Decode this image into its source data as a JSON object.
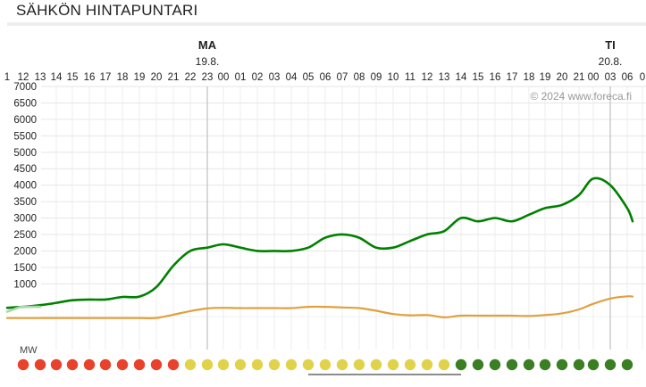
{
  "header": {
    "title": "SÄHKÖN HINTAPUNTARI"
  },
  "chart_data": {
    "type": "line",
    "copyright": "© 2024 www.foreca.fi",
    "unit_label": "MW",
    "day_labels": [
      {
        "day": "MA",
        "date": "19.8.",
        "hour_index": 12
      },
      {
        "day": "TI",
        "date": "20.8.",
        "hour_index": 36
      }
    ],
    "hour_labels": [
      "1",
      "12",
      "13",
      "14",
      "15",
      "16",
      "17",
      "18",
      "19",
      "20",
      "21",
      "22",
      "23",
      "00",
      "01",
      "02",
      "03",
      "04",
      "05",
      "06",
      "07",
      "08",
      "09",
      "10",
      "11",
      "12",
      "13",
      "14",
      "15",
      "16",
      "17",
      "18",
      "19",
      "20",
      "21",
      "00",
      "03",
      "06",
      "0"
    ],
    "hour_tick_x": [
      8,
      26,
      45,
      63,
      81,
      100,
      118,
      137,
      156,
      175,
      194,
      213,
      232,
      250,
      269,
      288,
      307,
      326,
      345,
      364,
      383,
      402,
      421,
      440,
      459,
      478,
      497,
      516,
      535,
      554,
      573,
      592,
      610,
      629,
      648,
      664,
      683,
      702,
      719
    ],
    "ylim": [
      0,
      7000
    ],
    "yticks": [
      1000,
      1500,
      2000,
      2500,
      3000,
      3500,
      4000,
      4500,
      5000,
      5500,
      6000,
      6500,
      7000
    ],
    "x_range": [
      8,
      719
    ],
    "grid": true,
    "series": [
      {
        "color": "#008000",
        "x": [
          8,
          26,
          45,
          63,
          81,
          100,
          118,
          137,
          156,
          175,
          194,
          213,
          232,
          250,
          269,
          288,
          307,
          326,
          345,
          364,
          383,
          402,
          421,
          440,
          459,
          478,
          497,
          516,
          535,
          554,
          573,
          592,
          610,
          629,
          648,
          664,
          683,
          702,
          708
        ],
        "values": [
          270,
          300,
          350,
          420,
          500,
          520,
          520,
          600,
          610,
          900,
          1550,
          2000,
          2100,
          2200,
          2100,
          2000,
          2000,
          2000,
          2100,
          2400,
          2500,
          2400,
          2100,
          2100,
          2300,
          2500,
          2600,
          3000,
          2900,
          3000,
          2900,
          3100,
          3300,
          3400,
          3700,
          4200,
          4000,
          3300,
          2900
        ]
      },
      {
        "color": "#e0a040",
        "x": [
          8,
          26,
          45,
          63,
          81,
          100,
          118,
          137,
          156,
          175,
          194,
          213,
          232,
          250,
          269,
          288,
          307,
          326,
          345,
          364,
          383,
          402,
          421,
          440,
          459,
          478,
          497,
          516,
          535,
          554,
          573,
          592,
          610,
          629,
          648,
          664,
          683,
          702,
          708
        ],
        "values": [
          -40,
          -40,
          -40,
          -40,
          -40,
          -40,
          -40,
          -40,
          -40,
          -40,
          60,
          170,
          250,
          270,
          260,
          260,
          260,
          260,
          300,
          300,
          280,
          260,
          180,
          80,
          40,
          50,
          -20,
          30,
          30,
          30,
          30,
          20,
          50,
          100,
          220,
          390,
          550,
          620,
          610
        ]
      },
      {
        "color": "#a8d8a8",
        "x": [
          8,
          20,
          26,
          40,
          45
        ],
        "values": [
          150,
          270,
          300,
          300,
          300
        ]
      }
    ],
    "price_dots": {
      "colors": [
        "#e8412c",
        "#e8412c",
        "#e8412c",
        "#e8412c",
        "#e8412c",
        "#e8412c",
        "#e8412c",
        "#e8412c",
        "#e8412c",
        "#e8412c",
        "#e0d34b",
        "#e0d34b",
        "#e0d34b",
        "#e0d34b",
        "#e0d34b",
        "#e0d34b",
        "#e0d34b",
        "#e0d34b",
        "#e0d34b",
        "#e0d34b",
        "#e0d34b",
        "#e0d34b",
        "#e0d34b",
        "#e0d34b",
        "#e0d34b",
        "#e0d34b",
        "#3a7f22",
        "#3a7f22",
        "#3a7f22",
        "#3a7f22",
        "#3a7f22",
        "#3a7f22",
        "#3a7f22",
        "#3a7f22",
        "#3a7f22",
        "#3a7f22",
        "#3a7f22"
      ],
      "x": [
        26,
        45,
        63,
        81,
        100,
        118,
        137,
        156,
        175,
        194,
        213,
        232,
        250,
        269,
        288,
        307,
        326,
        345,
        364,
        383,
        402,
        421,
        440,
        459,
        478,
        497,
        516,
        535,
        554,
        573,
        592,
        610,
        629,
        648,
        664,
        683,
        702
      ]
    },
    "now_marker": {
      "start_hour_index": 18,
      "end_hour_index": 27
    }
  }
}
